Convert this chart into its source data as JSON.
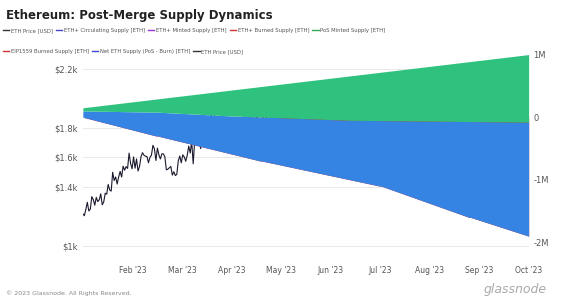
{
  "title": "Ethereum: Post-Merge Supply Dynamics",
  "n_points": 300,
  "color_green": "#2ec27e",
  "color_blue": "#3584e4",
  "color_red": "#e01b24",
  "color_line": "#1a1a2e",
  "background_color": "#ffffff",
  "grid_color": "#e0e0e0",
  "footer_text": "© 2023 Glassnode. All Rights Reserved.",
  "watermark": "glassnode",
  "x_tick_labels": [
    "Feb '23",
    "Mar '23",
    "Apr '23",
    "May '23",
    "Jun '23",
    "Jul '23",
    "Aug '23",
    "Sep '23",
    "Oct '23"
  ],
  "yticks_left": [
    1000,
    1400,
    1600,
    1800,
    2200
  ],
  "ytick_labels_left": [
    "$1k",
    "$1.4k",
    "$1.6k",
    "$1.8k",
    "$2.2k"
  ],
  "yticks_right": [
    -2000000,
    -1000000,
    0,
    1000000
  ],
  "ytick_labels_right": [
    "-2M",
    "-1M",
    "0",
    "1M"
  ]
}
